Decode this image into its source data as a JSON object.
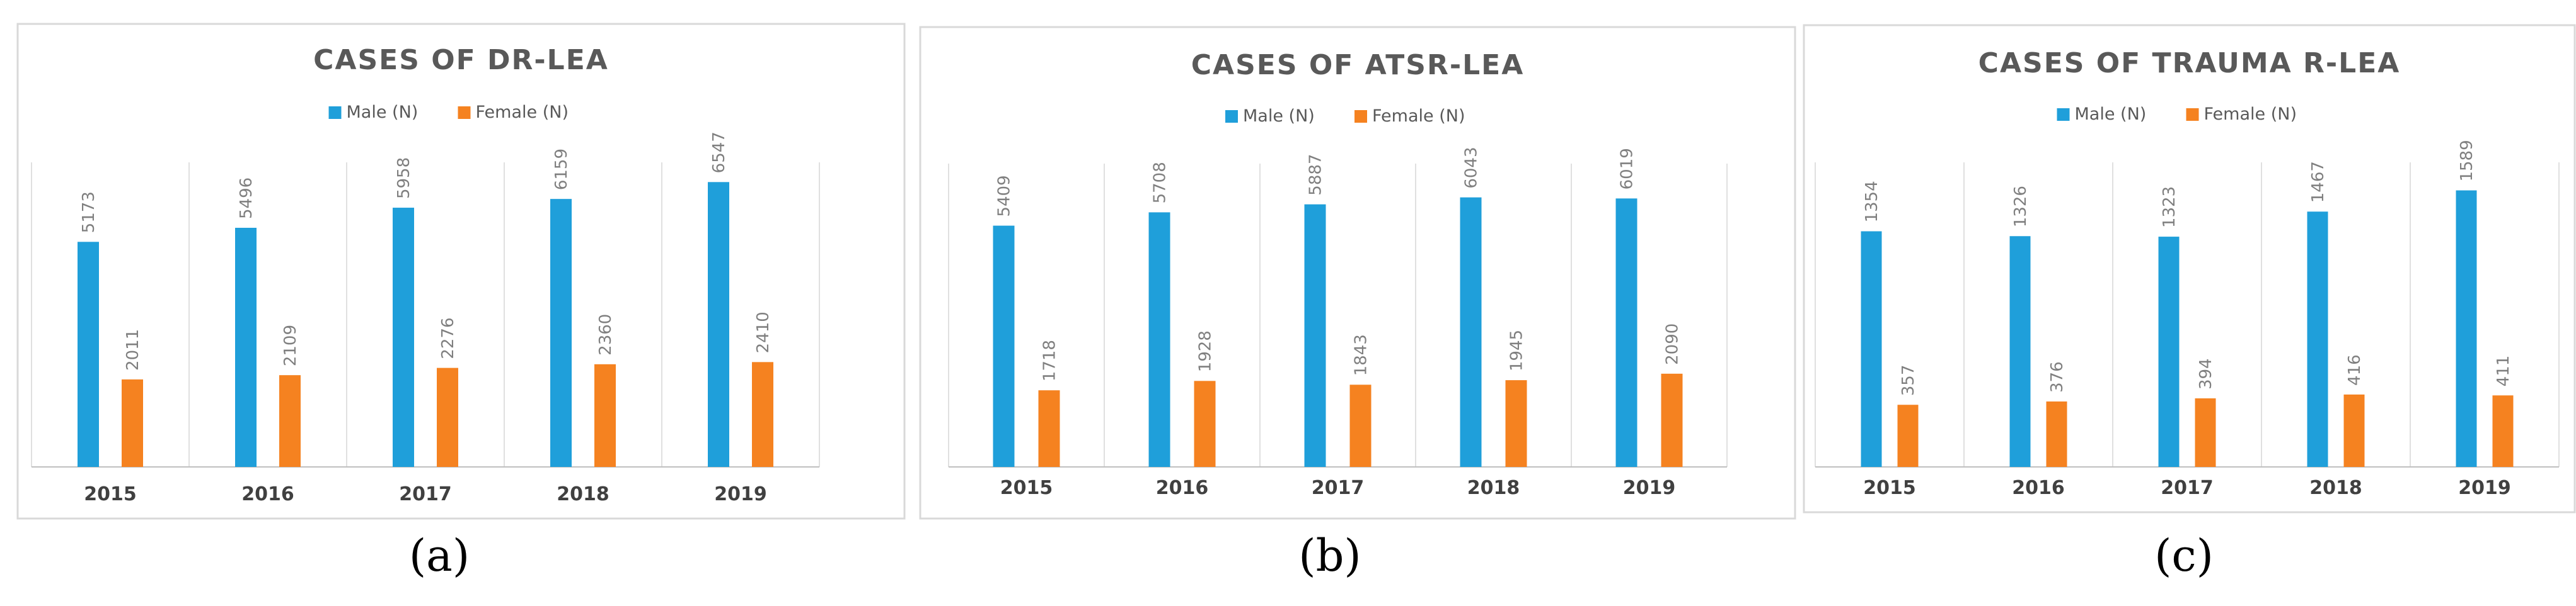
{
  "colors": {
    "male": "#1f9fda",
    "female": "#f58220",
    "frame": "#d9d9d9",
    "grid": "#e0e0e0",
    "title": "#595959",
    "value": "#7f7f7f",
    "tick": "#404040"
  },
  "chart_data": [
    {
      "type": "bar",
      "title": "CASES OF DR-LEA",
      "categories": [
        "2015",
        "2016",
        "2017",
        "2018",
        "2019"
      ],
      "series": [
        {
          "name": "Male (N)",
          "values": [
            5173,
            5496,
            5958,
            6159,
            6547
          ]
        },
        {
          "name": "Female (N)",
          "values": [
            2011,
            2109,
            2276,
            2360,
            2410
          ]
        }
      ],
      "legend": "top-center",
      "ylim": [
        0,
        7000
      ],
      "caption": "(a)"
    },
    {
      "type": "bar",
      "title": "CASES OF ATSR-LEA",
      "categories": [
        "2015",
        "2016",
        "2017",
        "2018",
        "2019"
      ],
      "series": [
        {
          "name": "Male (N)",
          "values": [
            5409,
            5708,
            5887,
            6043,
            6019
          ]
        },
        {
          "name": "Female (N)",
          "values": [
            1718,
            1928,
            1843,
            1945,
            2090
          ]
        }
      ],
      "legend": "top-center",
      "ylim": [
        0,
        6800
      ],
      "caption": "(b)"
    },
    {
      "type": "bar",
      "title": "CASES OF TRAUMA R-LEA",
      "categories": [
        "2015",
        "2016",
        "2017",
        "2018",
        "2019"
      ],
      "series": [
        {
          "name": "Male (N)",
          "values": [
            1354,
            1326,
            1323,
            1467,
            1589
          ]
        },
        {
          "name": "Female (N)",
          "values": [
            357,
            376,
            394,
            416,
            411
          ]
        }
      ],
      "legend": "top-center",
      "ylim": [
        0,
        1750
      ],
      "caption": "(c)"
    }
  ]
}
